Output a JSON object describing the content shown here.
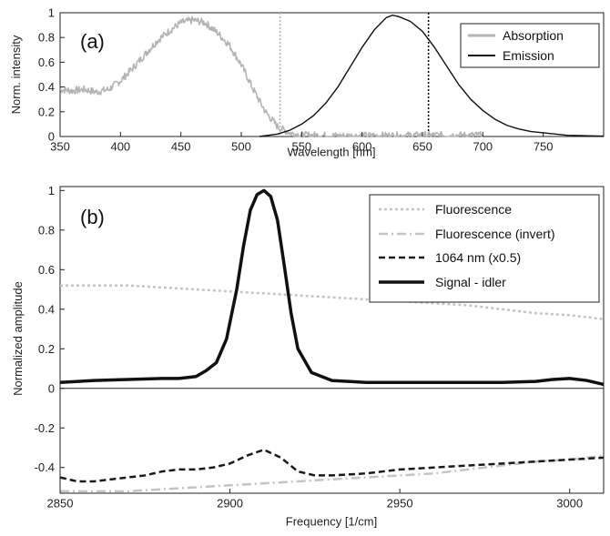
{
  "chart_data": [
    {
      "type": "line",
      "panel_label": "(a)",
      "xlabel": "Wavelength [nm]",
      "ylabel": "Norm. intensity",
      "xlim": [
        350,
        800
      ],
      "ylim": [
        0,
        1
      ],
      "xticks": [
        350,
        400,
        450,
        500,
        550,
        600,
        650,
        700,
        750
      ],
      "yticks": [
        0,
        0.2,
        0.4,
        0.6,
        0.8,
        1
      ],
      "ytick_labels": [
        "0",
        "0.2",
        "0.4",
        "0.6",
        "0.8",
        "1"
      ],
      "legend_position": "top-right",
      "vlines": [
        {
          "x": 532,
          "style": "dotted",
          "color": "#b0b0b0"
        },
        {
          "x": 655,
          "style": "dotted",
          "color": "#000000"
        }
      ],
      "series": [
        {
          "name": "Absorption",
          "color": "#b4b4b4",
          "noisy": true,
          "x": [
            350,
            360,
            370,
            380,
            390,
            400,
            410,
            420,
            430,
            440,
            450,
            460,
            470,
            480,
            490,
            500,
            510,
            520,
            530,
            540,
            550,
            560,
            580,
            600,
            650,
            700
          ],
          "y": [
            0.38,
            0.37,
            0.38,
            0.36,
            0.38,
            0.45,
            0.55,
            0.66,
            0.77,
            0.85,
            0.92,
            0.94,
            0.92,
            0.84,
            0.74,
            0.58,
            0.38,
            0.2,
            0.08,
            0.03,
            0.01,
            0.01,
            0.005,
            0.005,
            0.01,
            0.01
          ]
        },
        {
          "name": "Emission",
          "color": "#111111",
          "noisy": false,
          "x": [
            515,
            530,
            540,
            550,
            560,
            570,
            580,
            590,
            600,
            610,
            620,
            625,
            630,
            640,
            650,
            660,
            670,
            680,
            690,
            700,
            710,
            720,
            730,
            740,
            750,
            760,
            770,
            780,
            790,
            800
          ],
          "y": [
            0.0,
            0.02,
            0.05,
            0.1,
            0.17,
            0.27,
            0.4,
            0.56,
            0.72,
            0.86,
            0.96,
            0.98,
            0.97,
            0.93,
            0.85,
            0.72,
            0.57,
            0.42,
            0.3,
            0.21,
            0.14,
            0.09,
            0.06,
            0.04,
            0.03,
            0.02,
            0.01,
            0.008,
            0.005,
            0.003
          ]
        }
      ]
    },
    {
      "type": "line",
      "panel_label": "(b)",
      "xlabel": "Frequency [1/cm]",
      "ylabel": "Normalized amplitude",
      "xlim": [
        2850,
        3010
      ],
      "ylim": [
        -0.53,
        1.02
      ],
      "xticks": [
        2850,
        2900,
        2950,
        3000
      ],
      "yticks": [
        -0.4,
        -0.2,
        0,
        0.2,
        0.4,
        0.6,
        0.8,
        1
      ],
      "ytick_labels": [
        "-0.4",
        "-0.2",
        "0",
        "0.2",
        "0.4",
        "0.6",
        "0.8",
        "1"
      ],
      "zero_line": true,
      "legend_position": "top-right",
      "series": [
        {
          "name": "Fluorescence",
          "color": "#c4c4c4",
          "dash": "3,3",
          "width": 2.5,
          "x": [
            2850,
            2860,
            2870,
            2880,
            2890,
            2900,
            2910,
            2920,
            2930,
            2940,
            2950,
            2960,
            2970,
            2980,
            2990,
            3000,
            3010
          ],
          "y": [
            0.52,
            0.52,
            0.52,
            0.51,
            0.5,
            0.49,
            0.48,
            0.47,
            0.46,
            0.45,
            0.44,
            0.43,
            0.42,
            0.4,
            0.38,
            0.37,
            0.35
          ]
        },
        {
          "name": "Fluorescence (invert)",
          "color": "#c4c4c4",
          "dash": "10,4,2,4",
          "width": 2.5,
          "x": [
            2850,
            2860,
            2870,
            2880,
            2890,
            2900,
            2910,
            2920,
            2930,
            2940,
            2950,
            2960,
            2970,
            2980,
            2990,
            3000,
            3010
          ],
          "y": [
            -0.52,
            -0.52,
            -0.52,
            -0.51,
            -0.5,
            -0.49,
            -0.48,
            -0.47,
            -0.46,
            -0.45,
            -0.44,
            -0.43,
            -0.41,
            -0.39,
            -0.37,
            -0.36,
            -0.34
          ]
        },
        {
          "name": "1064 nm (x0.5)",
          "color": "#1a1a1a",
          "dash": "7,4",
          "width": 2.5,
          "x": [
            2850,
            2855,
            2860,
            2865,
            2870,
            2875,
            2880,
            2885,
            2890,
            2895,
            2900,
            2905,
            2910,
            2915,
            2920,
            2925,
            2930,
            2940,
            2950,
            2960,
            2970,
            2980,
            2990,
            3000,
            3010
          ],
          "y": [
            -0.45,
            -0.47,
            -0.47,
            -0.46,
            -0.45,
            -0.44,
            -0.42,
            -0.41,
            -0.41,
            -0.4,
            -0.38,
            -0.34,
            -0.31,
            -0.35,
            -0.42,
            -0.44,
            -0.44,
            -0.43,
            -0.41,
            -0.4,
            -0.39,
            -0.38,
            -0.37,
            -0.36,
            -0.35
          ]
        },
        {
          "name": "Signal - idler",
          "color": "#111111",
          "dash": "",
          "width": 3.5,
          "x": [
            2850,
            2860,
            2870,
            2880,
            2885,
            2890,
            2893,
            2896,
            2899,
            2902,
            2904,
            2906,
            2908,
            2910,
            2912,
            2914,
            2916,
            2918,
            2920,
            2924,
            2930,
            2940,
            2960,
            2980,
            2990,
            2995,
            3000,
            3005,
            3010
          ],
          "y": [
            0.03,
            0.04,
            0.045,
            0.05,
            0.05,
            0.06,
            0.09,
            0.13,
            0.25,
            0.5,
            0.72,
            0.9,
            0.98,
            1.0,
            0.97,
            0.85,
            0.62,
            0.38,
            0.2,
            0.08,
            0.04,
            0.03,
            0.03,
            0.03,
            0.035,
            0.045,
            0.05,
            0.04,
            0.02
          ]
        }
      ]
    }
  ]
}
